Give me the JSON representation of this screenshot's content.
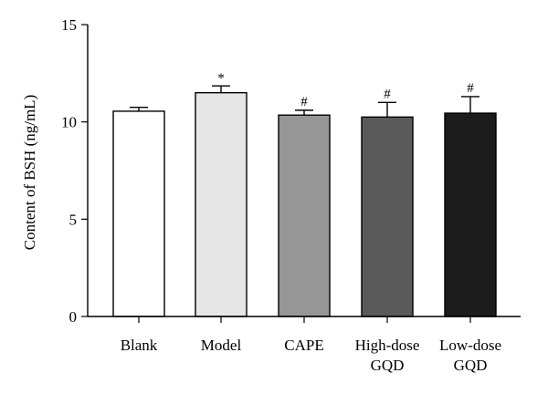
{
  "chart_data": {
    "type": "bar",
    "title": "",
    "xlabel": "",
    "ylabel": "Content of BSH (ng/mL)",
    "ylim": [
      0,
      15
    ],
    "yticks": [
      "0",
      "5",
      "10",
      "15"
    ],
    "grid": false,
    "categories": [
      [
        "Blank"
      ],
      [
        "Model"
      ],
      [
        "CAPE"
      ],
      [
        "High-dose",
        "GQD"
      ],
      [
        "Low-dose",
        "GQD"
      ]
    ],
    "values": [
      10.55,
      11.5,
      10.35,
      10.25,
      10.45
    ],
    "errors": [
      0.2,
      0.35,
      0.25,
      0.75,
      0.85
    ],
    "annotations": [
      "",
      "*",
      "#",
      "#",
      "#"
    ],
    "colors": [
      "#ffffff",
      "#e6e6e6",
      "#969696",
      "#5a5a5a",
      "#1c1c1c"
    ]
  }
}
